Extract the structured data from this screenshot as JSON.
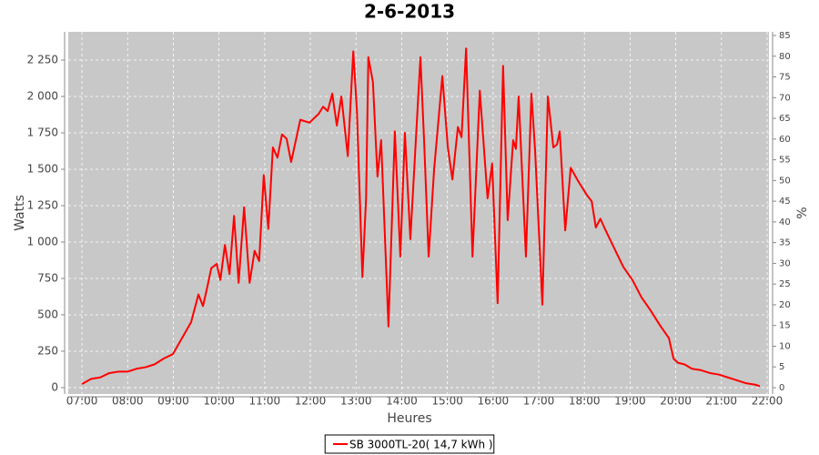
{
  "chart_data": {
    "type": "line",
    "title": "2-6-2013",
    "x_label": "Heures",
    "y_label": "Watts",
    "y2_label": "%",
    "x": [
      7.0,
      7.2,
      7.4,
      7.6,
      7.8,
      8.0,
      8.2,
      8.39,
      8.59,
      8.79,
      8.99,
      9.19,
      9.39,
      9.55,
      9.65,
      9.75,
      9.83,
      9.95,
      10.03,
      10.13,
      10.23,
      10.33,
      10.43,
      10.55,
      10.67,
      10.78,
      10.88,
      10.98,
      11.08,
      11.18,
      11.28,
      11.38,
      11.48,
      11.58,
      11.78,
      11.98,
      12.18,
      12.28,
      12.38,
      12.48,
      12.58,
      12.68,
      12.82,
      12.94,
      13.02,
      13.14,
      13.22,
      13.27,
      13.37,
      13.47,
      13.55,
      13.71,
      13.85,
      13.97,
      14.07,
      14.19,
      14.41,
      14.49,
      14.59,
      14.71,
      14.89,
      15.01,
      15.11,
      15.23,
      15.31,
      15.41,
      15.55,
      15.71,
      15.88,
      15.98,
      16.1,
      16.22,
      16.32,
      16.44,
      16.5,
      16.56,
      16.72,
      16.84,
      16.92,
      17.08,
      17.2,
      17.32,
      17.4,
      17.46,
      17.58,
      17.7,
      17.86,
      18.06,
      18.16,
      18.25,
      18.35,
      18.45,
      18.65,
      18.85,
      19.05,
      19.25,
      19.45,
      19.65,
      19.85,
      19.95,
      20.05,
      20.19,
      20.35,
      20.55,
      20.75,
      20.94,
      21.14,
      21.34,
      21.54,
      21.74,
      21.84
    ],
    "series": [
      {
        "name": "SB 3000TL-20( 14,7 kWh )",
        "color": "#ff0000",
        "values": [
          25,
          60,
          70,
          100,
          110,
          110,
          130,
          140,
          160,
          200,
          230,
          340,
          450,
          640,
          560,
          700,
          820,
          850,
          740,
          980,
          780,
          1180,
          720,
          1240,
          720,
          940,
          870,
          1460,
          1090,
          1650,
          1580,
          1740,
          1710,
          1550,
          1840,
          1820,
          1880,
          1930,
          1900,
          2020,
          1800,
          2000,
          1590,
          2310,
          1900,
          760,
          1300,
          2270,
          2100,
          1450,
          1700,
          420,
          1760,
          900,
          1750,
          1020,
          2270,
          1700,
          900,
          1500,
          2140,
          1650,
          1430,
          1790,
          1720,
          2330,
          900,
          2040,
          1300,
          1540,
          580,
          2210,
          1150,
          1700,
          1640,
          2000,
          900,
          2020,
          1630,
          570,
          2000,
          1650,
          1670,
          1760,
          1080,
          1510,
          1420,
          1320,
          1280,
          1100,
          1160,
          1090,
          960,
          830,
          740,
          620,
          530,
          430,
          340,
          200,
          170,
          160,
          130,
          120,
          100,
          90,
          70,
          50,
          30,
          20,
          10
        ]
      }
    ],
    "xlim": [
      6.7,
      22.04
    ],
    "xticks": [
      {
        "value": 7,
        "label": "07:00"
      },
      {
        "value": 8,
        "label": "08:00"
      },
      {
        "value": 9,
        "label": "09:00"
      },
      {
        "value": 10,
        "label": "10:00"
      },
      {
        "value": 11,
        "label": "11:00"
      },
      {
        "value": 12,
        "label": "12:00"
      },
      {
        "value": 13,
        "label": "13:00"
      },
      {
        "value": 14,
        "label": "14:00"
      },
      {
        "value": 15,
        "label": "15:00"
      },
      {
        "value": 16,
        "label": "16:00"
      },
      {
        "value": 17,
        "label": "17:00"
      },
      {
        "value": 18,
        "label": "18:00"
      },
      {
        "value": 19,
        "label": "19:00"
      },
      {
        "value": 20,
        "label": "20:00"
      },
      {
        "value": 21,
        "label": "21:00"
      },
      {
        "value": 22,
        "label": "22:00"
      }
    ],
    "ylim": [
      -44,
      2444
    ],
    "yticks": [
      0,
      250,
      500,
      750,
      {
        "value": 1000,
        "label": "1 000"
      },
      {
        "value": 1250,
        "label": "1 250"
      },
      {
        "value": 1500,
        "label": "1 500"
      },
      {
        "value": 1750,
        "label": "1 750"
      },
      {
        "value": 2000,
        "label": "2 000"
      },
      {
        "value": 2250,
        "label": "2 250"
      }
    ],
    "y2lim": [
      -1.54,
      85.88
    ],
    "y2ticks": [
      0,
      5,
      10,
      15,
      20,
      25,
      30,
      35,
      40,
      45,
      50,
      55,
      60,
      65,
      70,
      75,
      80,
      85
    ],
    "grid": true,
    "legend": "bottom"
  }
}
